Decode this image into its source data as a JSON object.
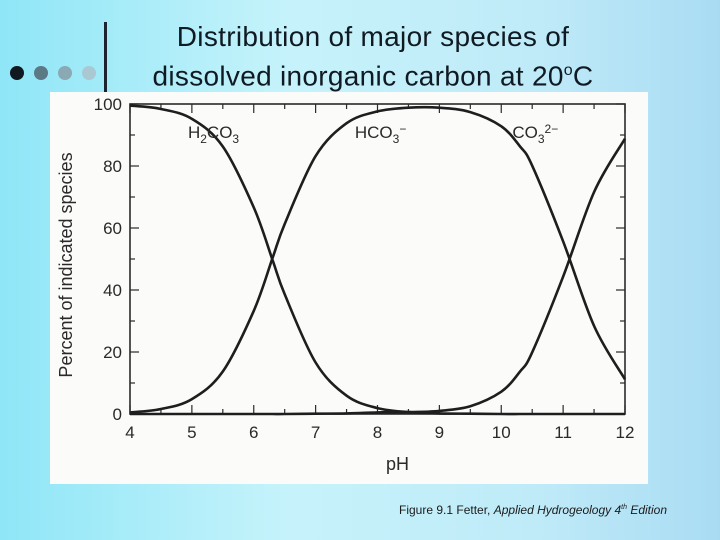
{
  "slide": {
    "title_line1": "Distribution of major species of",
    "title_line2_pre": "dissolved inorganic carbon at 20",
    "title_degree": "o",
    "title_line2_post": "C",
    "caption_pre": "Figure 9.1 Fetter, ",
    "caption_book": "Applied Hydrogeology 4",
    "caption_sup": "th",
    "caption_post": " Edition"
  },
  "chart_data": {
    "type": "line",
    "xlabel": "pH",
    "ylabel": "Percent of indicated species",
    "xlim": [
      4,
      12
    ],
    "ylim": [
      0,
      100
    ],
    "x_ticks": [
      "4",
      "5",
      "6",
      "7",
      "8",
      "9",
      "10",
      "11",
      "12"
    ],
    "y_ticks": [
      "0",
      "20",
      "40",
      "60",
      "80",
      "100"
    ],
    "x": [
      4,
      4.5,
      5,
      5.5,
      6,
      6.3,
      6.5,
      7,
      7.5,
      8,
      8.5,
      9,
      9.5,
      10,
      10.3,
      10.5,
      11,
      11.5,
      12
    ],
    "series": [
      {
        "name": "H2CO3",
        "label_main": "H",
        "label_sub": "2",
        "label_tail": "CO",
        "label_sub2": "3",
        "label_sup": "",
        "values": [
          99.5,
          98.4,
          95.2,
          86.3,
          66.6,
          49.9,
          38.6,
          16.6,
          5.9,
          1.9,
          0.6,
          0.2,
          0.1,
          0,
          0,
          0,
          0,
          0,
          0
        ]
      },
      {
        "name": "HCO3-",
        "label_main": "HCO",
        "label_sub": "3",
        "label_tail": "",
        "label_sub2": "",
        "label_sup": "−",
        "values": [
          0.5,
          1.6,
          4.8,
          13.7,
          33.3,
          50.1,
          61.3,
          83.2,
          93.8,
          97.6,
          98.8,
          98.8,
          97.4,
          92.8,
          86.4,
          80.1,
          55.7,
          28.4,
          11.2
        ]
      },
      {
        "name": "CO3 2-",
        "label_main": "CO",
        "label_sub": "3",
        "label_tail": "",
        "label_sub2": "",
        "label_sup": "2−",
        "values": [
          0,
          0,
          0,
          0,
          0,
          0,
          0,
          0.1,
          0.2,
          0.5,
          0.6,
          1.0,
          2.5,
          7.2,
          13.6,
          19.9,
          44.3,
          71.6,
          88.8
        ]
      }
    ],
    "grid": false,
    "legend": "inline labels at top"
  }
}
